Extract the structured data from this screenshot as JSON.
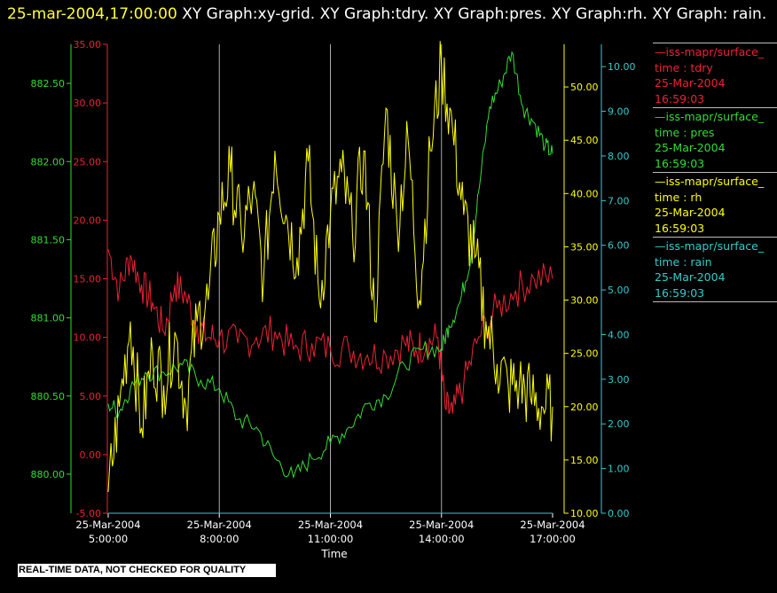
{
  "title": {
    "timestamp": "25-mar-2004,17:00:00",
    "graphs": "XY Graph:xy-grid.  XY Graph:tdry.  XY Graph:pres.  XY Graph:rh.  XY Graph: rain."
  },
  "footer": {
    "quality_note": "REAL-TIME DATA, NOT CHECKED FOR QUALITY"
  },
  "chart_data": {
    "type": "line",
    "xlabel": "Time",
    "x_range": [
      "2004-03-25T05:00",
      "2004-03-25T17:00"
    ],
    "x_ticks": [
      {
        "date": "25-Mar-2004",
        "time": "5:00:00"
      },
      {
        "date": "25-Mar-2004",
        "time": "8:00:00"
      },
      {
        "date": "25-Mar-2004",
        "time": "11:00:00"
      },
      {
        "date": "25-Mar-2004",
        "time": "14:00:00"
      },
      {
        "date": "25-Mar-2004",
        "time": "17:00:00"
      }
    ],
    "grid": "vertical",
    "legend_position": "right",
    "axes": {
      "pres": {
        "color": "#33dd33",
        "ylim": [
          879.75,
          882.75
        ],
        "ticks": [
          "880.00",
          "880.50",
          "881.00",
          "881.50",
          "882.00",
          "882.50"
        ]
      },
      "tdry": {
        "color": "#ee2233",
        "ylim": [
          -5,
          35
        ],
        "ticks": [
          "-5.00",
          "0.00",
          "5.00",
          "10.00",
          "15.00",
          "20.00",
          "25.00",
          "30.00",
          "35.00"
        ]
      },
      "rh": {
        "color": "#ffff00",
        "ylim": [
          10,
          54
        ],
        "ticks": [
          "10.00",
          "15.00",
          "20.00",
          "25.00",
          "30.00",
          "35.00",
          "40.00",
          "45.00",
          "50.00"
        ]
      },
      "rain": {
        "color": "#33cccc",
        "ylim": [
          0,
          10.5
        ],
        "ticks": [
          "0.00",
          "1.00",
          "2.00",
          "3.00",
          "4.00",
          "5.00",
          "6.00",
          "7.00",
          "8.00",
          "9.00",
          "10.00"
        ]
      }
    },
    "series": [
      {
        "name": "tdry",
        "color": "#ee2233",
        "legend": {
          "var": "—iss-mapr/surface_",
          "field": "time : tdry",
          "date": "25-Mar-2004",
          "time": "16:59:03"
        },
        "x": [
          5.0,
          5.3,
          5.6,
          5.9,
          6.2,
          6.5,
          6.8,
          7.1,
          7.4,
          7.7,
          8.0,
          8.5,
          9.0,
          9.5,
          10.0,
          10.5,
          11.0,
          11.5,
          12.0,
          12.5,
          13.0,
          13.3,
          13.6,
          13.9,
          14.1,
          14.3,
          14.6,
          15.0,
          15.5,
          16.0,
          16.5,
          17.0
        ],
        "values": [
          17.5,
          14.0,
          17.0,
          14.5,
          13.0,
          10.5,
          14.5,
          13.5,
          11.0,
          10.0,
          10.0,
          9.5,
          10.0,
          10.5,
          9.0,
          9.5,
          9.0,
          9.0,
          8.5,
          8.5,
          9.5,
          9.0,
          9.5,
          10.0,
          4.0,
          3.5,
          6.0,
          10.0,
          12.5,
          14.0,
          15.0,
          15.0
        ]
      },
      {
        "name": "pres",
        "color": "#33dd33",
        "legend": {
          "var": "—iss-mapr/surface_",
          "field": "time : pres",
          "date": "25-Mar-2004",
          "time": "16:59:03"
        },
        "x": [
          5.0,
          5.3,
          5.6,
          6.0,
          6.5,
          7.0,
          7.5,
          8.0,
          8.5,
          9.0,
          9.5,
          10.0,
          10.5,
          11.0,
          11.5,
          12.0,
          12.5,
          13.0,
          13.5,
          14.0,
          14.2,
          14.5,
          14.8,
          15.0,
          15.3,
          15.6,
          15.9,
          16.2,
          16.5,
          16.8,
          17.0
        ],
        "values": [
          880.45,
          880.4,
          880.55,
          880.65,
          880.65,
          880.7,
          880.6,
          880.55,
          880.35,
          880.3,
          880.1,
          879.98,
          880.1,
          880.2,
          880.3,
          880.45,
          880.5,
          880.7,
          880.8,
          880.8,
          880.95,
          881.1,
          881.4,
          881.8,
          882.35,
          882.5,
          882.7,
          882.35,
          882.25,
          882.1,
          882.05
        ]
      },
      {
        "name": "rh",
        "color": "#ffff00",
        "legend": {
          "var": "—iss-mapr/surface_",
          "field": "time : rh",
          "date": "25-Mar-2004",
          "time": "16:59:03"
        },
        "x": [
          5.0,
          5.3,
          5.6,
          5.9,
          6.2,
          6.5,
          6.8,
          7.1,
          7.4,
          7.7,
          8.0,
          8.3,
          8.6,
          8.9,
          9.2,
          9.5,
          9.8,
          10.1,
          10.4,
          10.7,
          11.0,
          11.3,
          11.6,
          11.9,
          12.2,
          12.5,
          12.8,
          13.1,
          13.4,
          13.7,
          14.0,
          14.3,
          14.6,
          14.9,
          15.2,
          15.5,
          15.8,
          16.1,
          16.4,
          16.7,
          17.0
        ],
        "values": [
          12,
          20,
          28,
          18,
          25,
          22,
          27,
          20,
          28,
          30,
          38,
          42,
          36,
          40,
          32,
          44,
          38,
          34,
          43,
          30,
          38,
          42,
          36,
          44,
          28,
          48,
          37,
          45,
          30,
          44,
          52,
          46,
          38,
          34,
          28,
          24,
          22,
          22,
          21,
          20,
          20
        ]
      },
      {
        "name": "rain",
        "color": "#33cccc",
        "legend": {
          "var": "—iss-mapr/surface_",
          "field": "time : rain",
          "date": "25-Mar-2004",
          "time": "16:59:03"
        },
        "x": [
          5.0,
          17.0
        ],
        "values": [
          0.0,
          0.0
        ]
      }
    ]
  }
}
